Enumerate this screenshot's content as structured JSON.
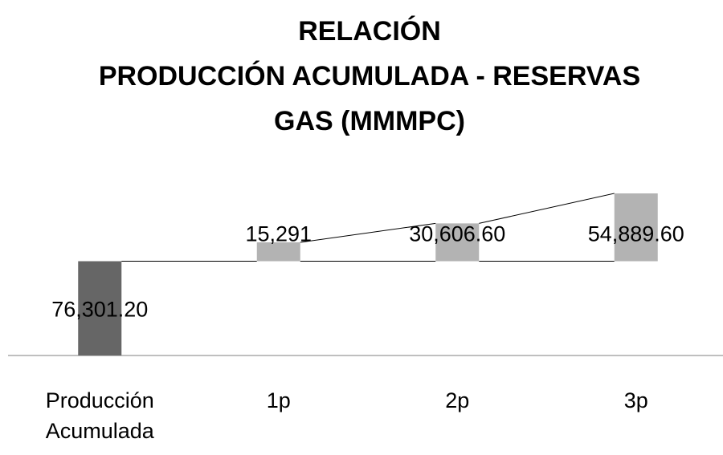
{
  "chart_data": {
    "type": "waterfall",
    "title": [
      "RELACIÓN",
      "PRODUCCIÓN ACUMULADA - RESERVAS",
      "GAS (MMMPC)"
    ],
    "categories": [
      "Producción Acumulada",
      "1p",
      "2p",
      "3p"
    ],
    "values": [
      76301.2,
      15291,
      30606.6,
      54889.6
    ],
    "value_labels": [
      "76,301.20",
      "15,291",
      "30,606.60",
      "54,889.60"
    ],
    "colors": [
      "#666666",
      "#b3b3b3",
      "#b3b3b3",
      "#b3b3b3"
    ]
  }
}
